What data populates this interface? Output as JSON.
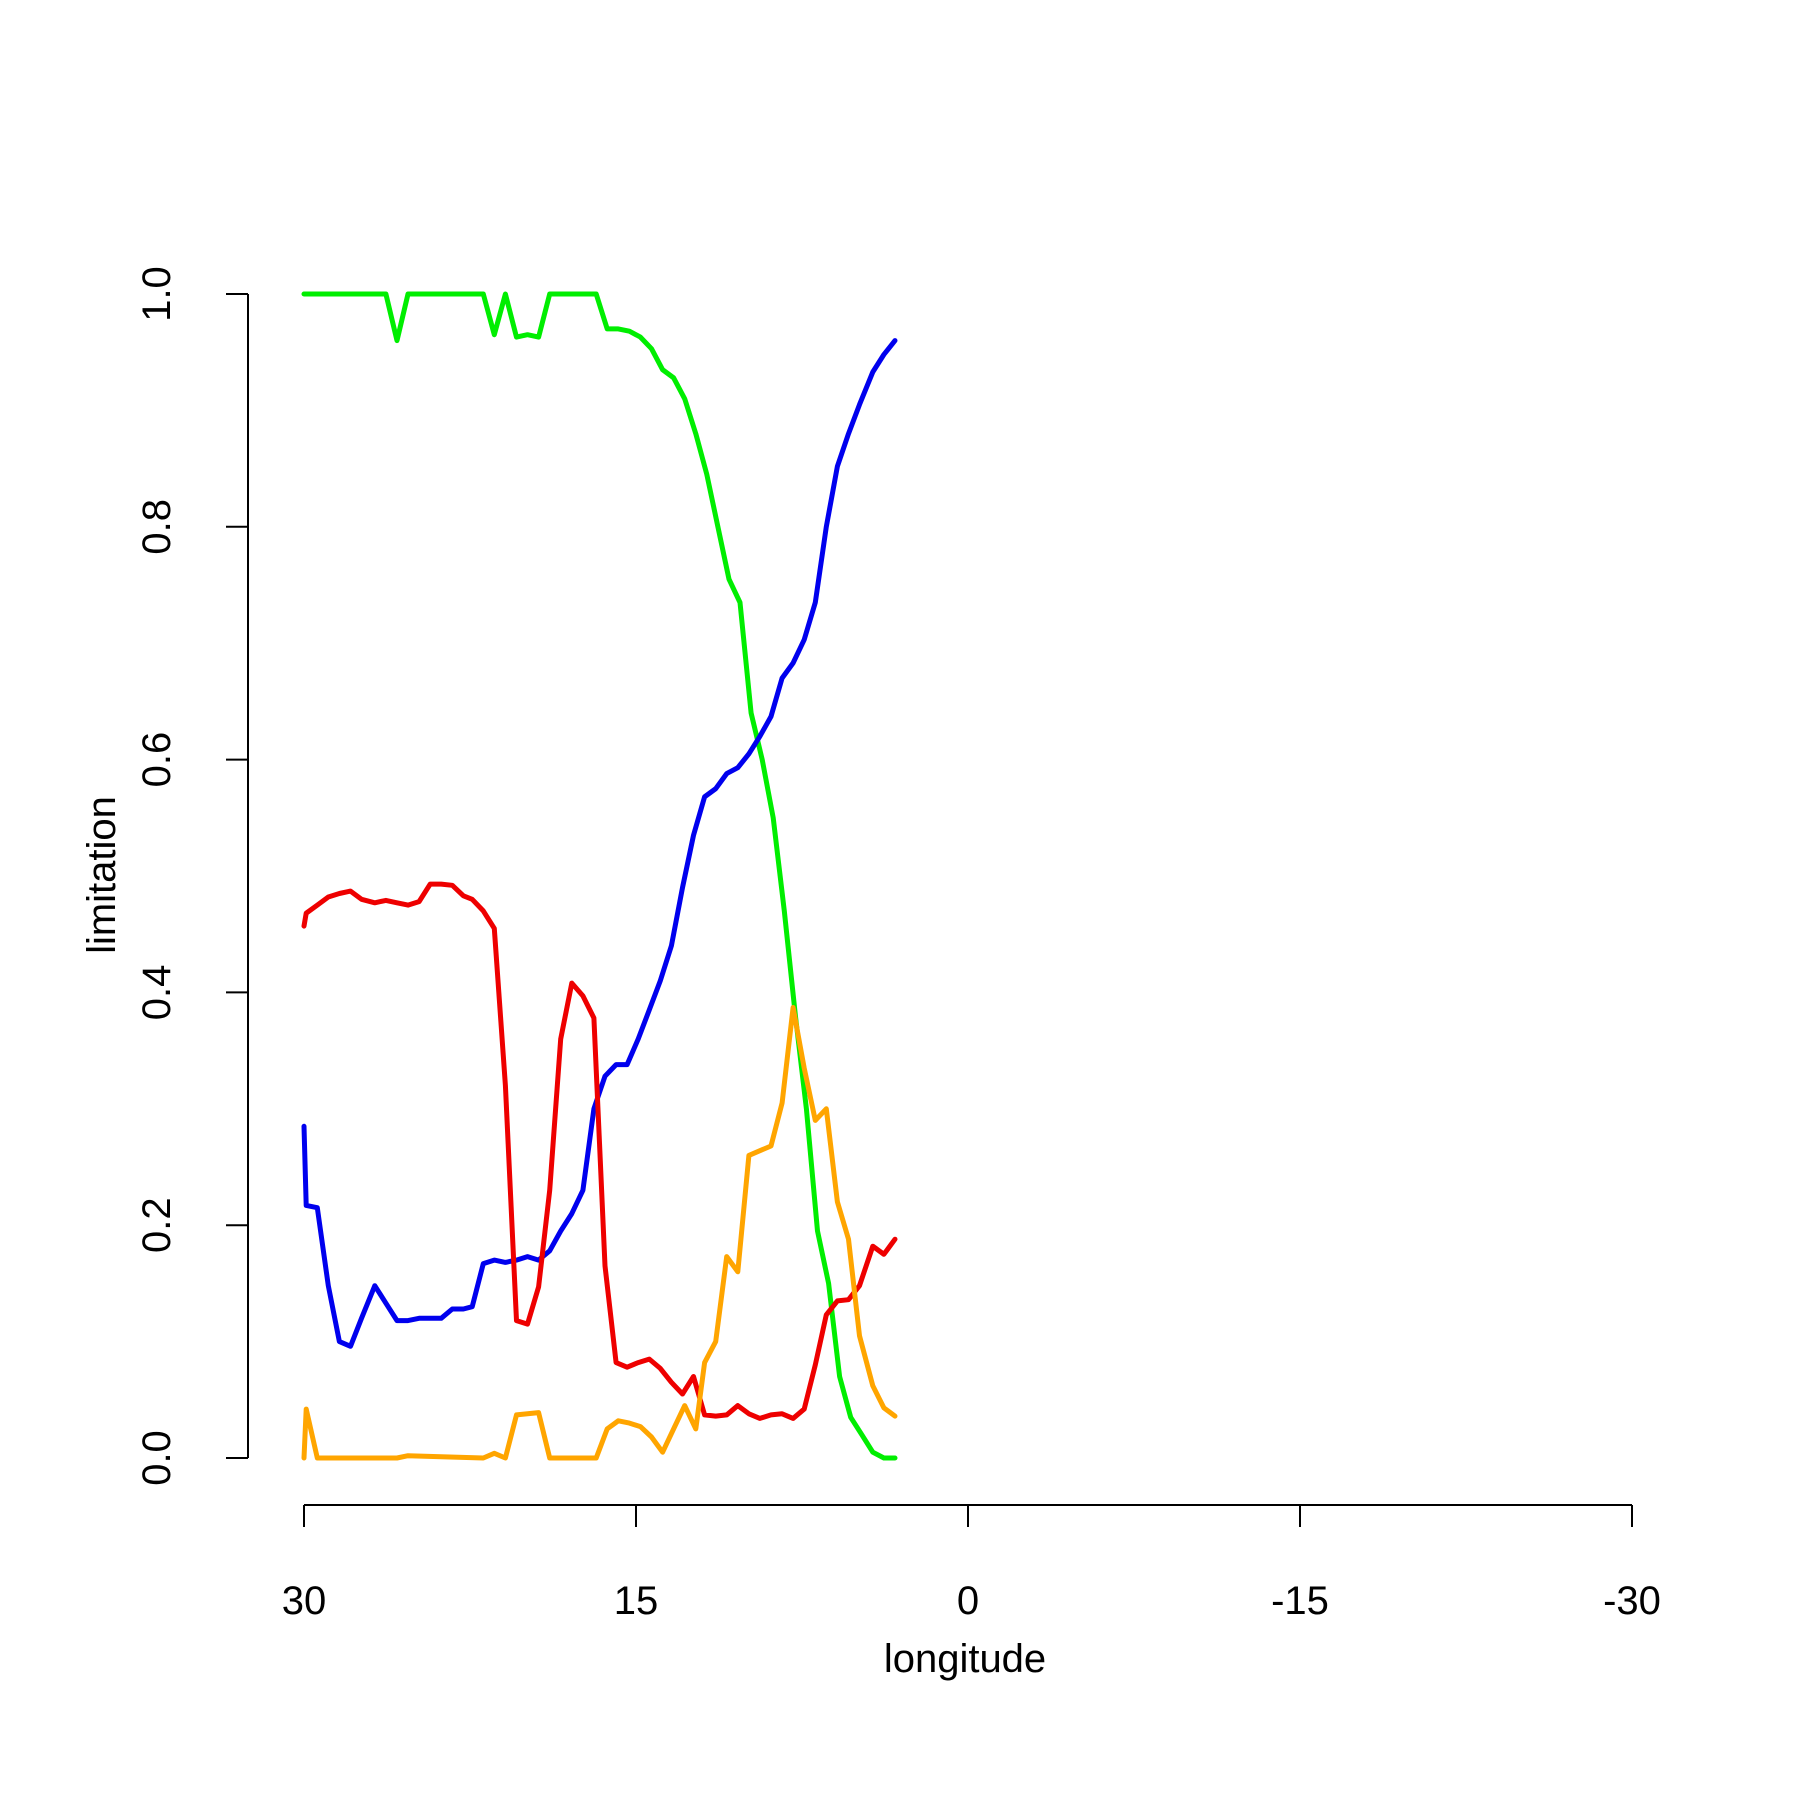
{
  "chart_data": {
    "type": "line",
    "title": "",
    "xlabel": "longitude",
    "ylabel": "limitation",
    "xlim": [
      30,
      -30
    ],
    "ylim": [
      0,
      1
    ],
    "x_reversed": true,
    "grid": false,
    "x_ticks": [
      30,
      15,
      0,
      -15,
      -30
    ],
    "x_tick_labels": [
      "30",
      "15",
      "0",
      "-15",
      "-30"
    ],
    "y_ticks": [
      0,
      0.2,
      0.4,
      0.6,
      0.8,
      1.0
    ],
    "y_tick_labels": [
      "0.0",
      "0.2",
      "0.4",
      "0.6",
      "0.8",
      "1.0"
    ],
    "series": [
      {
        "color": "#00ee00",
        "points": [
          [
            30,
            1.0
          ],
          [
            26.3,
            1.0
          ],
          [
            25.8,
            0.96
          ],
          [
            25.3,
            1.0
          ],
          [
            21.9,
            1.0
          ],
          [
            21.4,
            0.965
          ],
          [
            20.9,
            1.0
          ],
          [
            20.4,
            0.963
          ],
          [
            19.9,
            0.965
          ],
          [
            19.4,
            0.963
          ],
          [
            18.9,
            1.0
          ],
          [
            16.8,
            1.0
          ],
          [
            16.3,
            0.97
          ],
          [
            15.8,
            0.97
          ],
          [
            15.3,
            0.968
          ],
          [
            14.8,
            0.963
          ],
          [
            14.3,
            0.953
          ],
          [
            13.8,
            0.935
          ],
          [
            13.3,
            0.928
          ],
          [
            12.8,
            0.91
          ],
          [
            12.3,
            0.88
          ],
          [
            11.8,
            0.845
          ],
          [
            11.3,
            0.8
          ],
          [
            10.8,
            0.755
          ],
          [
            10.3,
            0.735
          ],
          [
            9.8,
            0.64
          ],
          [
            9.3,
            0.6
          ],
          [
            8.8,
            0.55
          ],
          [
            8.3,
            0.47
          ],
          [
            7.8,
            0.38
          ],
          [
            7.3,
            0.3
          ],
          [
            6.8,
            0.195
          ],
          [
            6.3,
            0.15
          ],
          [
            5.8,
            0.07
          ],
          [
            5.3,
            0.035
          ],
          [
            4.8,
            0.02
          ],
          [
            4.3,
            0.005
          ],
          [
            3.8,
            0.0
          ],
          [
            3.3,
            0.0
          ]
        ]
      },
      {
        "color": "#0000ee",
        "points": [
          [
            30,
            0.285
          ],
          [
            29.9,
            0.217
          ],
          [
            29.4,
            0.215
          ],
          [
            28.9,
            0.148
          ],
          [
            28.4,
            0.1
          ],
          [
            27.9,
            0.096
          ],
          [
            27.4,
            0.12
          ],
          [
            26.8,
            0.148
          ],
          [
            26.3,
            0.133
          ],
          [
            25.8,
            0.118
          ],
          [
            25.3,
            0.118
          ],
          [
            24.8,
            0.12
          ],
          [
            24.3,
            0.12
          ],
          [
            23.8,
            0.12
          ],
          [
            23.3,
            0.128
          ],
          [
            22.8,
            0.128
          ],
          [
            22.4,
            0.13
          ],
          [
            21.9,
            0.167
          ],
          [
            21.4,
            0.17
          ],
          [
            20.9,
            0.168
          ],
          [
            20.4,
            0.17
          ],
          [
            19.9,
            0.173
          ],
          [
            19.4,
            0.17
          ],
          [
            18.9,
            0.178
          ],
          [
            18.4,
            0.195
          ],
          [
            17.9,
            0.21
          ],
          [
            17.4,
            0.23
          ],
          [
            16.9,
            0.3
          ],
          [
            16.4,
            0.328
          ],
          [
            15.9,
            0.338
          ],
          [
            15.4,
            0.338
          ],
          [
            14.9,
            0.36
          ],
          [
            14.4,
            0.385
          ],
          [
            13.9,
            0.41
          ],
          [
            13.4,
            0.44
          ],
          [
            12.9,
            0.49
          ],
          [
            12.4,
            0.535
          ],
          [
            11.9,
            0.568
          ],
          [
            11.4,
            0.575
          ],
          [
            10.9,
            0.588
          ],
          [
            10.4,
            0.593
          ],
          [
            9.9,
            0.605
          ],
          [
            9.4,
            0.62
          ],
          [
            8.9,
            0.637
          ],
          [
            8.4,
            0.67
          ],
          [
            7.9,
            0.683
          ],
          [
            7.4,
            0.703
          ],
          [
            6.9,
            0.735
          ],
          [
            6.4,
            0.8
          ],
          [
            5.9,
            0.852
          ],
          [
            5.4,
            0.88
          ],
          [
            4.9,
            0.905
          ],
          [
            4.3,
            0.933
          ],
          [
            3.8,
            0.948
          ],
          [
            3.3,
            0.96
          ]
        ]
      },
      {
        "color": "#ee0000",
        "points": [
          [
            30,
            0.457
          ],
          [
            29.9,
            0.468
          ],
          [
            29.4,
            0.475
          ],
          [
            28.9,
            0.482
          ],
          [
            28.4,
            0.485
          ],
          [
            27.9,
            0.487
          ],
          [
            27.4,
            0.48
          ],
          [
            26.8,
            0.477
          ],
          [
            26.3,
            0.479
          ],
          [
            25.8,
            0.477
          ],
          [
            25.3,
            0.475
          ],
          [
            24.8,
            0.478
          ],
          [
            24.3,
            0.493
          ],
          [
            23.8,
            0.493
          ],
          [
            23.3,
            0.492
          ],
          [
            22.8,
            0.483
          ],
          [
            22.4,
            0.48
          ],
          [
            21.9,
            0.47
          ],
          [
            21.4,
            0.455
          ],
          [
            20.9,
            0.32
          ],
          [
            20.4,
            0.118
          ],
          [
            19.9,
            0.115
          ],
          [
            19.4,
            0.147
          ],
          [
            18.9,
            0.23
          ],
          [
            18.4,
            0.36
          ],
          [
            17.9,
            0.408
          ],
          [
            17.4,
            0.397
          ],
          [
            16.9,
            0.378
          ],
          [
            16.4,
            0.165
          ],
          [
            15.9,
            0.082
          ],
          [
            15.4,
            0.078
          ],
          [
            14.9,
            0.082
          ],
          [
            14.4,
            0.085
          ],
          [
            13.9,
            0.077
          ],
          [
            13.4,
            0.065
          ],
          [
            12.9,
            0.055
          ],
          [
            12.4,
            0.07
          ],
          [
            11.9,
            0.037
          ],
          [
            11.4,
            0.036
          ],
          [
            10.9,
            0.037
          ],
          [
            10.4,
            0.045
          ],
          [
            9.9,
            0.038
          ],
          [
            9.4,
            0.034
          ],
          [
            8.9,
            0.037
          ],
          [
            8.4,
            0.038
          ],
          [
            7.9,
            0.034
          ],
          [
            7.4,
            0.042
          ],
          [
            6.9,
            0.08
          ],
          [
            6.4,
            0.123
          ],
          [
            5.9,
            0.135
          ],
          [
            5.4,
            0.136
          ],
          [
            4.9,
            0.148
          ],
          [
            4.3,
            0.182
          ],
          [
            3.8,
            0.175
          ],
          [
            3.3,
            0.188
          ]
        ]
      },
      {
        "color": "#ffa500",
        "points": [
          [
            30,
            0.0
          ],
          [
            29.9,
            0.042
          ],
          [
            29.4,
            0.0
          ],
          [
            25.8,
            0.0
          ],
          [
            25.3,
            0.002
          ],
          [
            21.9,
            0.0
          ],
          [
            21.4,
            0.004
          ],
          [
            20.9,
            0.0
          ],
          [
            20.4,
            0.037
          ],
          [
            19.4,
            0.039
          ],
          [
            18.9,
            0.0
          ],
          [
            16.8,
            0.0
          ],
          [
            16.3,
            0.025
          ],
          [
            15.8,
            0.032
          ],
          [
            15.3,
            0.03
          ],
          [
            14.8,
            0.027
          ],
          [
            14.3,
            0.018
          ],
          [
            13.8,
            0.005
          ],
          [
            13.3,
            0.025
          ],
          [
            12.8,
            0.045
          ],
          [
            12.3,
            0.025
          ],
          [
            11.9,
            0.082
          ],
          [
            11.4,
            0.1
          ],
          [
            10.9,
            0.173
          ],
          [
            10.4,
            0.16
          ],
          [
            9.9,
            0.26
          ],
          [
            9.4,
            0.264
          ],
          [
            8.9,
            0.268
          ],
          [
            8.4,
            0.305
          ],
          [
            7.9,
            0.387
          ],
          [
            7.4,
            0.335
          ],
          [
            6.9,
            0.29
          ],
          [
            6.4,
            0.3
          ],
          [
            5.9,
            0.22
          ],
          [
            5.4,
            0.188
          ],
          [
            4.9,
            0.105
          ],
          [
            4.3,
            0.062
          ],
          [
            3.8,
            0.043
          ],
          [
            3.3,
            0.036
          ]
        ]
      }
    ]
  }
}
